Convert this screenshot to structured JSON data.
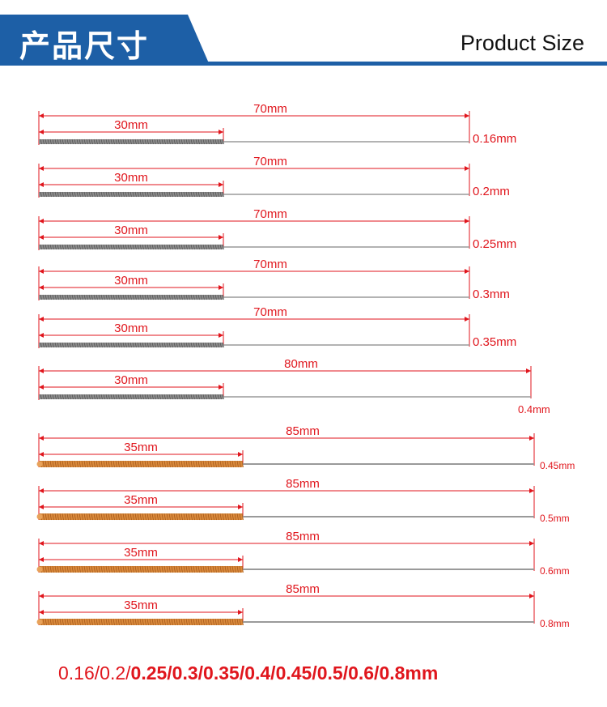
{
  "header": {
    "title_cn": "产品尺寸",
    "title_en": "Product Size"
  },
  "rows": [
    {
      "total_label": "70mm",
      "spring_label": "30mm",
      "diameter_label": "0.16mm",
      "total_mm": 70,
      "spring_mm": 30,
      "spring_color": "silver"
    },
    {
      "total_label": "70mm",
      "spring_label": "30mm",
      "diameter_label": "0.2mm",
      "total_mm": 70,
      "spring_mm": 30,
      "spring_color": "silver"
    },
    {
      "total_label": "70mm",
      "spring_label": "30mm",
      "diameter_label": "0.25mm",
      "total_mm": 70,
      "spring_mm": 30,
      "spring_color": "silver"
    },
    {
      "total_label": "70mm",
      "spring_label": "30mm",
      "diameter_label": "0.3mm",
      "total_mm": 70,
      "spring_mm": 30,
      "spring_color": "silver"
    },
    {
      "total_label": "70mm",
      "spring_label": "30mm",
      "diameter_label": "0.35mm",
      "total_mm": 70,
      "spring_mm": 30,
      "spring_color": "silver"
    },
    {
      "total_label": "80mm",
      "spring_label": "30mm",
      "diameter_label": "0.4mm",
      "total_mm": 80,
      "spring_mm": 30,
      "spring_color": "silver"
    },
    {
      "total_label": "85mm",
      "spring_label": "35mm",
      "diameter_label": "0.45mm",
      "total_mm": 85,
      "spring_mm": 35,
      "spring_color": "copper"
    },
    {
      "total_label": "85mm",
      "spring_label": "35mm",
      "diameter_label": "0.5mm",
      "total_mm": 85,
      "spring_mm": 35,
      "spring_color": "copper"
    },
    {
      "total_label": "85mm",
      "spring_label": "35mm",
      "diameter_label": "0.6mm",
      "total_mm": 85,
      "spring_mm": 35,
      "spring_color": "copper"
    },
    {
      "total_label": "85mm",
      "spring_label": "35mm",
      "diameter_label": "0.8mm",
      "total_mm": 85,
      "spring_mm": 35,
      "spring_color": "copper"
    }
  ],
  "footer": {
    "light_part": "0.16/0.2/",
    "bold_part": "0.25/0.3/0.35/0.4/0.45/0.5/0.6/0.8mm"
  },
  "colors": {
    "brand_blue": "#1d5fa6",
    "dimension_red": "#e0161d",
    "needle_gray": "#9a9a9a",
    "spring_silver": "#8c8c8c",
    "spring_copper": "#d98a3c"
  }
}
